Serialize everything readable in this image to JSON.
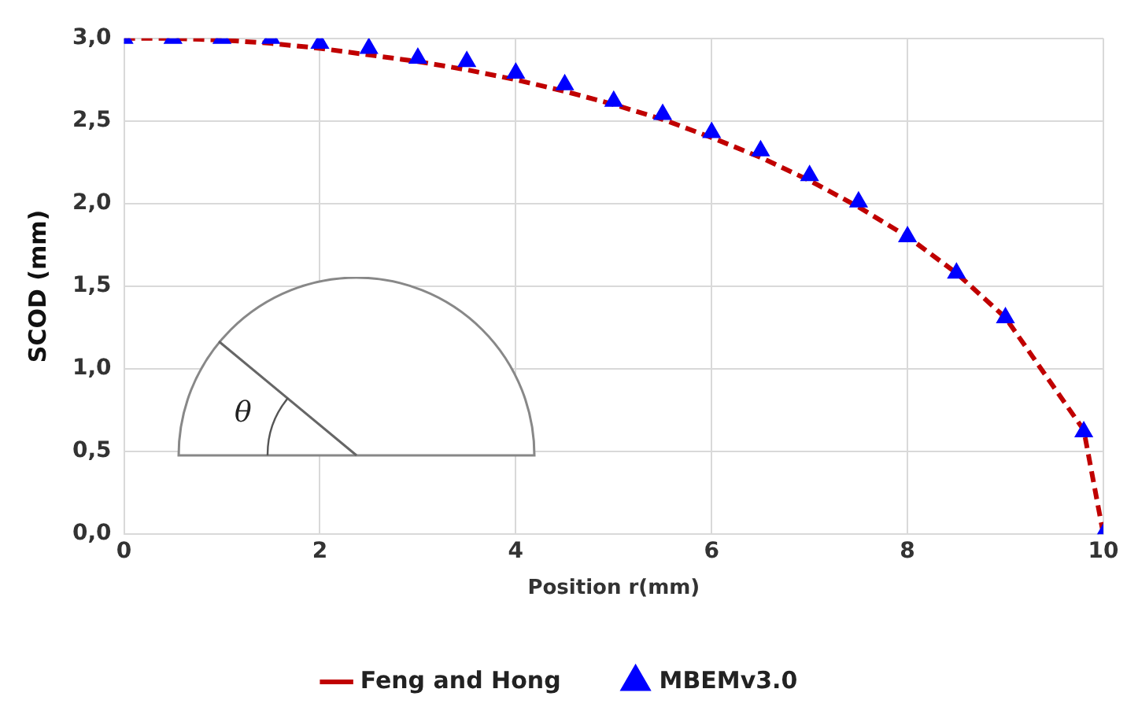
{
  "chart_data": {
    "type": "line",
    "xlabel": "Position r(mm)",
    "ylabel": "SCOD (mm)",
    "xlim": [
      0,
      10
    ],
    "xticks": [
      0,
      2,
      4,
      6,
      8,
      10
    ],
    "ylim": [
      0,
      3
    ],
    "yticks": [
      {
        "value": 0,
        "label": "0,0"
      },
      {
        "value": 0.5,
        "label": "0,5"
      },
      {
        "value": 1,
        "label": "1,0"
      },
      {
        "value": 1.5,
        "label": "1,5"
      },
      {
        "value": 2,
        "label": "2,0"
      },
      {
        "value": 2.5,
        "label": "2,5"
      },
      {
        "value": 3,
        "label": "3,0"
      }
    ],
    "grid": true,
    "legend": "bottom",
    "annotations": [
      "θ"
    ],
    "series": [
      {
        "name": "Feng and Hong",
        "type": "line",
        "color": "#c00000",
        "line_style": "dashed",
        "marker": "none",
        "x": [
          0,
          0.5,
          1,
          1.5,
          2,
          2.5,
          3,
          3.5,
          4,
          4.5,
          5,
          5.5,
          6,
          6.5,
          7,
          7.5,
          8,
          8.5,
          9,
          9.8,
          10
        ],
        "values": [
          3.0,
          3.0,
          2.99,
          2.97,
          2.94,
          2.9,
          2.86,
          2.81,
          2.75,
          2.68,
          2.6,
          2.51,
          2.4,
          2.28,
          2.14,
          1.98,
          1.8,
          1.58,
          1.31,
          0.63,
          0
        ]
      },
      {
        "name": "MBEMv3.0",
        "type": "scatter",
        "color": "#0000ff",
        "marker": "triangle",
        "x": [
          0,
          0.5,
          1,
          1.5,
          2,
          2.5,
          3,
          3.5,
          4,
          4.5,
          5,
          5.5,
          6,
          6.5,
          7,
          7.5,
          8,
          8.5,
          9,
          9.8,
          10
        ],
        "values": [
          3.0,
          3.0,
          3.0,
          3.0,
          2.97,
          2.94,
          2.88,
          2.86,
          2.79,
          2.72,
          2.62,
          2.54,
          2.43,
          2.32,
          2.17,
          2.01,
          1.8,
          1.58,
          1.31,
          0.62,
          0
        ]
      }
    ]
  }
}
